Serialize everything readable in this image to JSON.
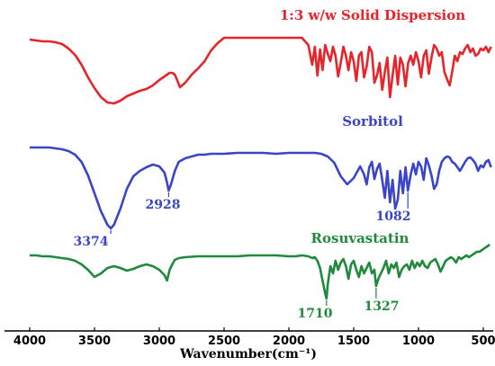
{
  "chart_data": {
    "type": "line",
    "xlabel": "Wavenumber(cm⁻¹)",
    "x_ticks": [
      4000,
      3500,
      3000,
      2500,
      2000,
      1500,
      1000,
      500
    ],
    "xlim": [
      4050,
      450
    ],
    "x_reversed": true,
    "grid": false,
    "series": [
      {
        "name": "1:3 w/w Solid Dispersion",
        "color": "#e8242b",
        "x": [
          4000,
          3950,
          3900,
          3850,
          3800,
          3750,
          3700,
          3650,
          3600,
          3550,
          3500,
          3450,
          3400,
          3350,
          3300,
          3250,
          3200,
          3150,
          3100,
          3050,
          3000,
          2950,
          2920,
          2900,
          2880,
          2860,
          2840,
          2800,
          2750,
          2700,
          2650,
          2600,
          2550,
          2500,
          2400,
          2300,
          2200,
          2100,
          2000,
          1900,
          1850,
          1820,
          1800,
          1780,
          1760,
          1740,
          1720,
          1700,
          1680,
          1660,
          1640,
          1620,
          1600,
          1580,
          1560,
          1540,
          1520,
          1500,
          1480,
          1460,
          1440,
          1420,
          1400,
          1380,
          1360,
          1340,
          1320,
          1300,
          1280,
          1260,
          1240,
          1220,
          1200,
          1180,
          1160,
          1140,
          1120,
          1100,
          1080,
          1060,
          1040,
          1020,
          1000,
          980,
          960,
          940,
          920,
          900,
          880,
          860,
          840,
          820,
          800,
          780,
          760,
          740,
          720,
          700,
          680,
          660,
          640,
          620,
          600,
          580,
          560,
          540,
          520,
          500,
          480,
          460,
          440
        ],
        "y": [
          44,
          45,
          46,
          46,
          47,
          49,
          54,
          61,
          72,
          86,
          98,
          108,
          114,
          115,
          112,
          107,
          104,
          101,
          99,
          95,
          89,
          84,
          81,
          81,
          83,
          90,
          97,
          92,
          83,
          76,
          68,
          56,
          48,
          42,
          42,
          42,
          42,
          42,
          42,
          42,
          50,
          72,
          52,
          84,
          55,
          78,
          50,
          60,
          68,
          52,
          62,
          85,
          70,
          52,
          62,
          78,
          58,
          68,
          90,
          62,
          58,
          86,
          74,
          52,
          58,
          92,
          84,
          70,
          100,
          80,
          64,
          108,
          84,
          62,
          94,
          64,
          72,
          96,
          70,
          62,
          72,
          58,
          68,
          86,
          62,
          56,
          82,
          64,
          50,
          54,
          62,
          58,
          80,
          88,
          95,
          80,
          62,
          68,
          58,
          60,
          54,
          50,
          58,
          54,
          62,
          60,
          54,
          56,
          52,
          58,
          52
        ]
      },
      {
        "name": "Sorbitol",
        "color": "#3a45c8",
        "x": [
          4000,
          3950,
          3900,
          3850,
          3800,
          3750,
          3700,
          3650,
          3600,
          3550,
          3500,
          3450,
          3400,
          3374,
          3350,
          3300,
          3250,
          3200,
          3150,
          3100,
          3050,
          3000,
          2960,
          2940,
          2928,
          2910,
          2880,
          2850,
          2800,
          2750,
          2700,
          2650,
          2600,
          2500,
          2400,
          2300,
          2200,
          2100,
          2000,
          1900,
          1800,
          1750,
          1700,
          1650,
          1600,
          1550,
          1500,
          1450,
          1420,
          1400,
          1380,
          1360,
          1340,
          1320,
          1300,
          1280,
          1260,
          1240,
          1220,
          1200,
          1180,
          1160,
          1140,
          1120,
          1100,
          1082,
          1060,
          1040,
          1020,
          1000,
          980,
          960,
          940,
          920,
          900,
          880,
          860,
          840,
          820,
          800,
          780,
          760,
          740,
          720,
          700,
          680,
          660,
          640,
          620,
          600,
          580,
          560,
          540,
          520,
          500,
          480,
          460,
          440
        ],
        "y": [
          164,
          164,
          164,
          164,
          165,
          166,
          168,
          172,
          180,
          195,
          215,
          235,
          250,
          254,
          250,
          232,
          210,
          196,
          190,
          186,
          183,
          185,
          192,
          203,
          212,
          205,
          190,
          180,
          176,
          174,
          172,
          172,
          171,
          171,
          170,
          170,
          170,
          171,
          170,
          170,
          170,
          171,
          174,
          181,
          196,
          205,
          198,
          185,
          194,
          205,
          186,
          180,
          199,
          188,
          182,
          200,
          220,
          190,
          225,
          200,
          232,
          222,
          190,
          215,
          186,
          212,
          194,
          182,
          194,
          180,
          185,
          200,
          176,
          184,
          195,
          210,
          205,
          190,
          180,
          176,
          174,
          175,
          180,
          182,
          186,
          190,
          185,
          180,
          176,
          175,
          178,
          182,
          190,
          184,
          186,
          180,
          178,
          186
        ]
      },
      {
        "name": "Rosuvastatin",
        "color": "#1f8a3c",
        "x": [
          4000,
          3950,
          3900,
          3850,
          3800,
          3750,
          3700,
          3650,
          3600,
          3550,
          3500,
          3450,
          3400,
          3350,
          3300,
          3250,
          3200,
          3150,
          3100,
          3050,
          3000,
          2960,
          2940,
          2920,
          2900,
          2880,
          2850,
          2800,
          2700,
          2600,
          2500,
          2400,
          2300,
          2200,
          2100,
          2000,
          1950,
          1900,
          1850,
          1820,
          1800,
          1780,
          1760,
          1740,
          1720,
          1710,
          1700,
          1680,
          1660,
          1640,
          1620,
          1600,
          1580,
          1560,
          1540,
          1520,
          1500,
          1480,
          1460,
          1440,
          1420,
          1400,
          1380,
          1360,
          1340,
          1327,
          1310,
          1290,
          1270,
          1250,
          1230,
          1210,
          1190,
          1170,
          1150,
          1130,
          1110,
          1090,
          1070,
          1050,
          1030,
          1010,
          990,
          970,
          950,
          930,
          910,
          890,
          870,
          850,
          830,
          810,
          790,
          770,
          750,
          730,
          710,
          690,
          670,
          650,
          630,
          610,
          590,
          570,
          550,
          530,
          510,
          490,
          470,
          450
        ],
        "y": [
          284,
          284,
          285,
          285,
          286,
          287,
          288,
          290,
          294,
          300,
          308,
          304,
          298,
          296,
          298,
          301,
          299,
          296,
          294,
          296,
          300,
          306,
          312,
          300,
          294,
          289,
          287,
          286,
          285,
          285,
          285,
          285,
          284,
          284,
          284,
          285,
          285,
          284,
          285,
          287,
          286,
          290,
          298,
          312,
          326,
          332,
          316,
          296,
          304,
          290,
          300,
          292,
          288,
          296,
          310,
          294,
          290,
          300,
          308,
          296,
          304,
          298,
          292,
          304,
          300,
          318,
          310,
          304,
          298,
          290,
          304,
          294,
          298,
          292,
          308,
          300,
          296,
          294,
          300,
          290,
          298,
          292,
          296,
          290,
          296,
          298,
          292,
          290,
          288,
          294,
          302,
          296,
          290,
          288,
          286,
          288,
          292,
          286,
          288,
          286,
          284,
          286,
          284,
          282,
          280,
          280,
          278,
          276,
          274,
          272
        ]
      }
    ],
    "labels": [
      {
        "text": "1:3 w/w Solid Dispersion",
        "color": "#e8242b"
      },
      {
        "text": "Sorbitol",
        "color": "#3a45c8"
      },
      {
        "text": "Rosuvastatin",
        "color": "#1f8a3c"
      }
    ],
    "annotations": [
      {
        "text": "3374",
        "x": 3374,
        "series": "Sorbitol",
        "color": "#3a45c8"
      },
      {
        "text": "2928",
        "x": 2928,
        "series": "Sorbitol",
        "color": "#3a45c8"
      },
      {
        "text": "1082",
        "x": 1082,
        "series": "Sorbitol",
        "color": "#3a45c8"
      },
      {
        "text": "1710",
        "x": 1710,
        "series": "Rosuvastatin",
        "color": "#1f8a3c"
      },
      {
        "text": "1327",
        "x": 1327,
        "series": "Rosuvastatin",
        "color": "#1f8a3c"
      }
    ]
  }
}
